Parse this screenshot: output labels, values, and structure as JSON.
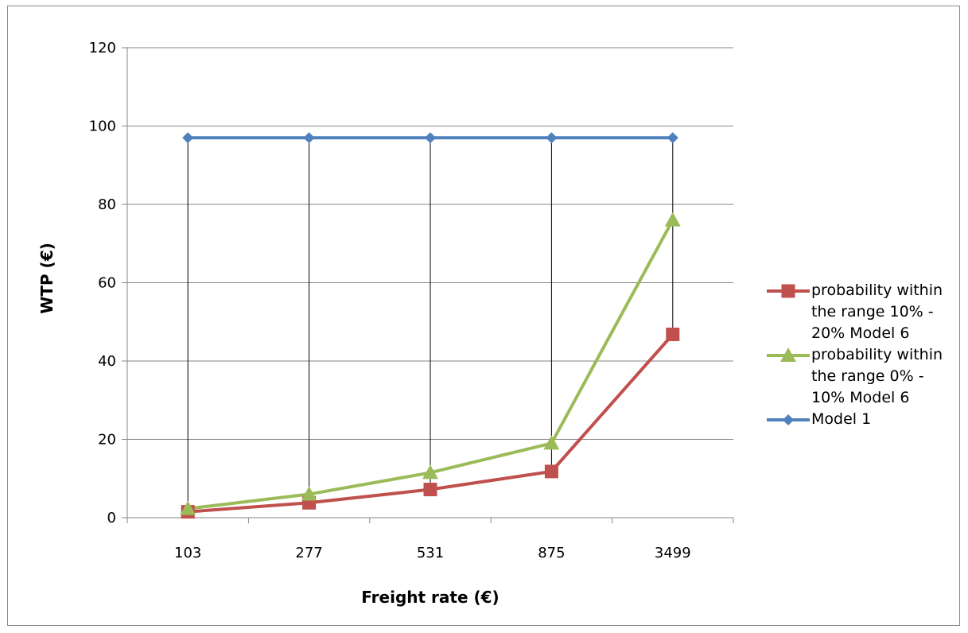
{
  "chart_data": {
    "type": "line",
    "title": "",
    "xlabel": "Freight rate (€)",
    "ylabel": "WTP (€)",
    "categories": [
      "103",
      "277",
      "531",
      "875",
      "3499"
    ],
    "ylim": [
      0,
      120
    ],
    "yticks": [
      0,
      20,
      40,
      60,
      80,
      100,
      120
    ],
    "grid": true,
    "legend_position": "right",
    "high_low_lines": true,
    "series": [
      {
        "name": "probability within the range 10% - 20% Model 6",
        "marker": "square",
        "color": "#C0504D",
        "values": [
          1.5,
          3.8,
          7.2,
          11.8,
          46.8
        ]
      },
      {
        "name": "probability within the range 0% - 10% Model 6",
        "marker": "triangle",
        "color": "#9BBB59",
        "values": [
          2.3,
          6.0,
          11.5,
          19.0,
          76.0
        ]
      },
      {
        "name": "Model 1",
        "marker": "diamond",
        "color": "#4F81BD",
        "values": [
          97,
          97,
          97,
          97,
          97
        ]
      }
    ]
  }
}
